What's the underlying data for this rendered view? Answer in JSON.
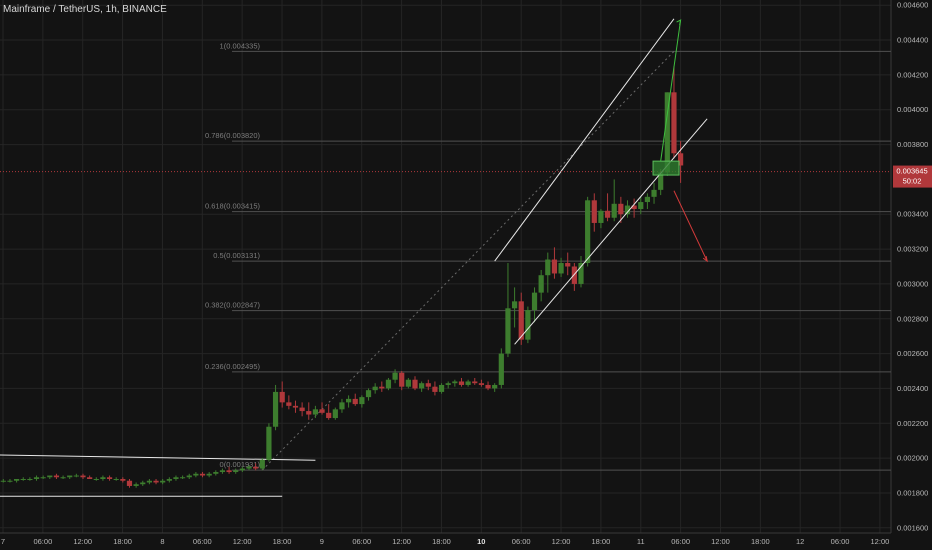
{
  "header": {
    "title": "Mainframe / TetherUS, 1h, BINANCE"
  },
  "colors": {
    "background": "#131313",
    "grid": "#252525",
    "up": "#3d7d2e",
    "down": "#b0383b",
    "fib_line": "#505050",
    "trend": "#e8e8e8",
    "price_line": "#b0383b",
    "bull_arrow": "#3fbf3f",
    "bear_arrow": "#d23a3a",
    "zone": "#2e7d2e"
  },
  "current_price": {
    "value": "0.003645",
    "countdown": "50:02"
  },
  "chart_data": {
    "type": "candlestick",
    "title": "Mainframe / TetherUS, 1h, BINANCE",
    "ylim": [
      0.00157,
      0.00463
    ],
    "y_ticks": [
      "0.004600",
      "0.004400",
      "0.004200",
      "0.004000",
      "0.003800",
      "0.003400",
      "0.003200",
      "0.003000",
      "0.002800",
      "0.002600",
      "0.002400",
      "0.002200",
      "0.002000",
      "0.001800",
      "0.001600"
    ],
    "x_ticks": [
      {
        "label": "7",
        "bold": false
      },
      {
        "label": "06:00",
        "bold": false
      },
      {
        "label": "12:00",
        "bold": false
      },
      {
        "label": "18:00",
        "bold": false
      },
      {
        "label": "8",
        "bold": false
      },
      {
        "label": "06:00",
        "bold": false
      },
      {
        "label": "12:00",
        "bold": false
      },
      {
        "label": "18:00",
        "bold": false
      },
      {
        "label": "9",
        "bold": false
      },
      {
        "label": "06:00",
        "bold": false
      },
      {
        "label": "12:00",
        "bold": false
      },
      {
        "label": "18:00",
        "bold": false
      },
      {
        "label": "10",
        "bold": true
      },
      {
        "label": "06:00",
        "bold": false
      },
      {
        "label": "12:00",
        "bold": false
      },
      {
        "label": "18:00",
        "bold": false
      },
      {
        "label": "11",
        "bold": false
      },
      {
        "label": "06:00",
        "bold": false
      },
      {
        "label": "12:00",
        "bold": false
      },
      {
        "label": "18:00",
        "bold": false
      },
      {
        "label": "12",
        "bold": false
      },
      {
        "label": "06:00",
        "bold": false
      },
      {
        "label": "12:00",
        "bold": false
      }
    ],
    "fib_levels": [
      {
        "label": "1(0.004335)",
        "value": 0.004335
      },
      {
        "label": "0.786(0.003820)",
        "value": 0.00382
      },
      {
        "label": "0.618(0.003415)",
        "value": 0.003415
      },
      {
        "label": "0.5(0.003131)",
        "value": 0.003131
      },
      {
        "label": "0.382(0.002847)",
        "value": 0.002847
      },
      {
        "label": "0.236(0.002495)",
        "value": 0.002495
      },
      {
        "label": "0(0.001931)",
        "value": 0.001931
      }
    ],
    "candles": [
      [
        0.00187,
        0.00188,
        0.00186,
        0.00187
      ],
      [
        0.00187,
        0.00188,
        0.00186,
        0.00187
      ],
      [
        0.00187,
        0.00188,
        0.00186,
        0.00188
      ],
      [
        0.00188,
        0.00189,
        0.00187,
        0.00188
      ],
      [
        0.00188,
        0.00189,
        0.00187,
        0.00188
      ],
      [
        0.00188,
        0.0019,
        0.00187,
        0.00189
      ],
      [
        0.00189,
        0.0019,
        0.00188,
        0.00189
      ],
      [
        0.00189,
        0.0019,
        0.00188,
        0.0019
      ],
      [
        0.0019,
        0.00191,
        0.00188,
        0.00189
      ],
      [
        0.00189,
        0.0019,
        0.00188,
        0.00189
      ],
      [
        0.00189,
        0.0019,
        0.00188,
        0.0019
      ],
      [
        0.0019,
        0.00191,
        0.00189,
        0.0019
      ],
      [
        0.0019,
        0.00191,
        0.00188,
        0.00189
      ],
      [
        0.00189,
        0.0019,
        0.00188,
        0.00188
      ],
      [
        0.00188,
        0.00189,
        0.00187,
        0.00188
      ],
      [
        0.00188,
        0.0019,
        0.00187,
        0.00189
      ],
      [
        0.00189,
        0.0019,
        0.00187,
        0.00188
      ],
      [
        0.00188,
        0.00189,
        0.00187,
        0.00188
      ],
      [
        0.00188,
        0.00189,
        0.00186,
        0.00187
      ],
      [
        0.00187,
        0.00188,
        0.00183,
        0.00184
      ],
      [
        0.00184,
        0.00186,
        0.00183,
        0.00185
      ],
      [
        0.00185,
        0.00187,
        0.00184,
        0.00186
      ],
      [
        0.00186,
        0.00188,
        0.00185,
        0.00187
      ],
      [
        0.00187,
        0.00188,
        0.00185,
        0.00186
      ],
      [
        0.00186,
        0.00188,
        0.00185,
        0.00187
      ],
      [
        0.00187,
        0.00189,
        0.00186,
        0.00188
      ],
      [
        0.00188,
        0.0019,
        0.00187,
        0.00189
      ],
      [
        0.00189,
        0.0019,
        0.00188,
        0.00189
      ],
      [
        0.00189,
        0.00191,
        0.00188,
        0.0019
      ],
      [
        0.0019,
        0.00192,
        0.00189,
        0.00191
      ],
      [
        0.00191,
        0.00192,
        0.00189,
        0.0019
      ],
      [
        0.0019,
        0.00192,
        0.00189,
        0.00191
      ],
      [
        0.00191,
        0.00193,
        0.0019,
        0.00192
      ],
      [
        0.00192,
        0.00194,
        0.00191,
        0.00193
      ],
      [
        0.00193,
        0.00195,
        0.00191,
        0.00192
      ],
      [
        0.00192,
        0.00194,
        0.00191,
        0.00193
      ],
      [
        0.00193,
        0.00195,
        0.00192,
        0.00194
      ],
      [
        0.00194,
        0.00196,
        0.00193,
        0.00195
      ],
      [
        0.00195,
        0.00197,
        0.00193,
        0.00194
      ],
      [
        0.00194,
        0.002,
        0.00193,
        0.00199
      ],
      [
        0.00199,
        0.0022,
        0.00198,
        0.00218
      ],
      [
        0.00218,
        0.00242,
        0.00216,
        0.00238
      ],
      [
        0.00238,
        0.00244,
        0.00229,
        0.00232
      ],
      [
        0.00232,
        0.00236,
        0.00228,
        0.0023
      ],
      [
        0.0023,
        0.00233,
        0.00226,
        0.00229
      ],
      [
        0.00229,
        0.00232,
        0.00224,
        0.00227
      ],
      [
        0.00227,
        0.00232,
        0.00222,
        0.00225
      ],
      [
        0.00225,
        0.0023,
        0.00223,
        0.00228
      ],
      [
        0.00228,
        0.00232,
        0.00225,
        0.00226
      ],
      [
        0.00226,
        0.00231,
        0.00222,
        0.00223
      ],
      [
        0.00223,
        0.00229,
        0.00222,
        0.00228
      ],
      [
        0.00228,
        0.00234,
        0.00226,
        0.00232
      ],
      [
        0.00232,
        0.00236,
        0.00229,
        0.00234
      ],
      [
        0.00234,
        0.00237,
        0.0023,
        0.00231
      ],
      [
        0.00231,
        0.00236,
        0.00229,
        0.00235
      ],
      [
        0.00235,
        0.0024,
        0.00233,
        0.00239
      ],
      [
        0.00239,
        0.00243,
        0.00237,
        0.00241
      ],
      [
        0.00241,
        0.00244,
        0.00238,
        0.0024
      ],
      [
        0.0024,
        0.00246,
        0.00239,
        0.00245
      ],
      [
        0.00245,
        0.00251,
        0.00243,
        0.00249
      ],
      [
        0.00249,
        0.0025,
        0.00239,
        0.00241
      ],
      [
        0.00241,
        0.00246,
        0.0024,
        0.00245
      ],
      [
        0.00245,
        0.00247,
        0.00239,
        0.0024
      ],
      [
        0.0024,
        0.00244,
        0.00238,
        0.00243
      ],
      [
        0.00243,
        0.00245,
        0.00239,
        0.00241
      ],
      [
        0.00241,
        0.00244,
        0.00236,
        0.00238
      ],
      [
        0.00238,
        0.00243,
        0.00237,
        0.00242
      ],
      [
        0.00242,
        0.00244,
        0.0024,
        0.00243
      ],
      [
        0.00243,
        0.00245,
        0.00241,
        0.00244
      ],
      [
        0.00244,
        0.00246,
        0.00241,
        0.00242
      ],
      [
        0.00242,
        0.00245,
        0.00241,
        0.00244
      ],
      [
        0.00244,
        0.00246,
        0.00242,
        0.00243
      ],
      [
        0.00243,
        0.00245,
        0.00241,
        0.00242
      ],
      [
        0.00242,
        0.00244,
        0.00239,
        0.0024
      ],
      [
        0.0024,
        0.00243,
        0.00238,
        0.00242
      ],
      [
        0.00242,
        0.00263,
        0.0024,
        0.0026
      ],
      [
        0.0026,
        0.00312,
        0.00258,
        0.00286
      ],
      [
        0.00286,
        0.00298,
        0.00275,
        0.0029
      ],
      [
        0.0029,
        0.00295,
        0.00265,
        0.00268
      ],
      [
        0.00268,
        0.00287,
        0.00266,
        0.00285
      ],
      [
        0.00285,
        0.00298,
        0.00278,
        0.00295
      ],
      [
        0.00295,
        0.00308,
        0.0029,
        0.00305
      ],
      [
        0.00305,
        0.00318,
        0.00295,
        0.00314
      ],
      [
        0.00314,
        0.00321,
        0.00303,
        0.00306
      ],
      [
        0.00306,
        0.00315,
        0.00304,
        0.00312
      ],
      [
        0.00312,
        0.00318,
        0.00305,
        0.0031
      ],
      [
        0.0031,
        0.00312,
        0.00296,
        0.003
      ],
      [
        0.003,
        0.00316,
        0.00298,
        0.00312
      ],
      [
        0.00312,
        0.0035,
        0.0031,
        0.00348
      ],
      [
        0.00348,
        0.00352,
        0.0033,
        0.00335
      ],
      [
        0.00335,
        0.00343,
        0.00332,
        0.00342
      ],
      [
        0.00342,
        0.00352,
        0.00336,
        0.00338
      ],
      [
        0.00338,
        0.0036,
        0.00336,
        0.00346
      ],
      [
        0.00346,
        0.0035,
        0.00335,
        0.0034
      ],
      [
        0.0034,
        0.00348,
        0.00338,
        0.00345
      ],
      [
        0.00345,
        0.00349,
        0.00338,
        0.00343
      ],
      [
        0.00343,
        0.0035,
        0.0034,
        0.00347
      ],
      [
        0.00347,
        0.00352,
        0.00343,
        0.0035
      ],
      [
        0.0035,
        0.00358,
        0.00346,
        0.00354
      ],
      [
        0.00354,
        0.00366,
        0.00351,
        0.00364
      ],
      [
        0.00364,
        0.0041,
        0.00362,
        0.0041
      ],
      [
        0.0041,
        0.00425,
        0.00372,
        0.00375
      ],
      [
        0.00375,
        0.00382,
        0.00358,
        0.00368
      ]
    ]
  }
}
